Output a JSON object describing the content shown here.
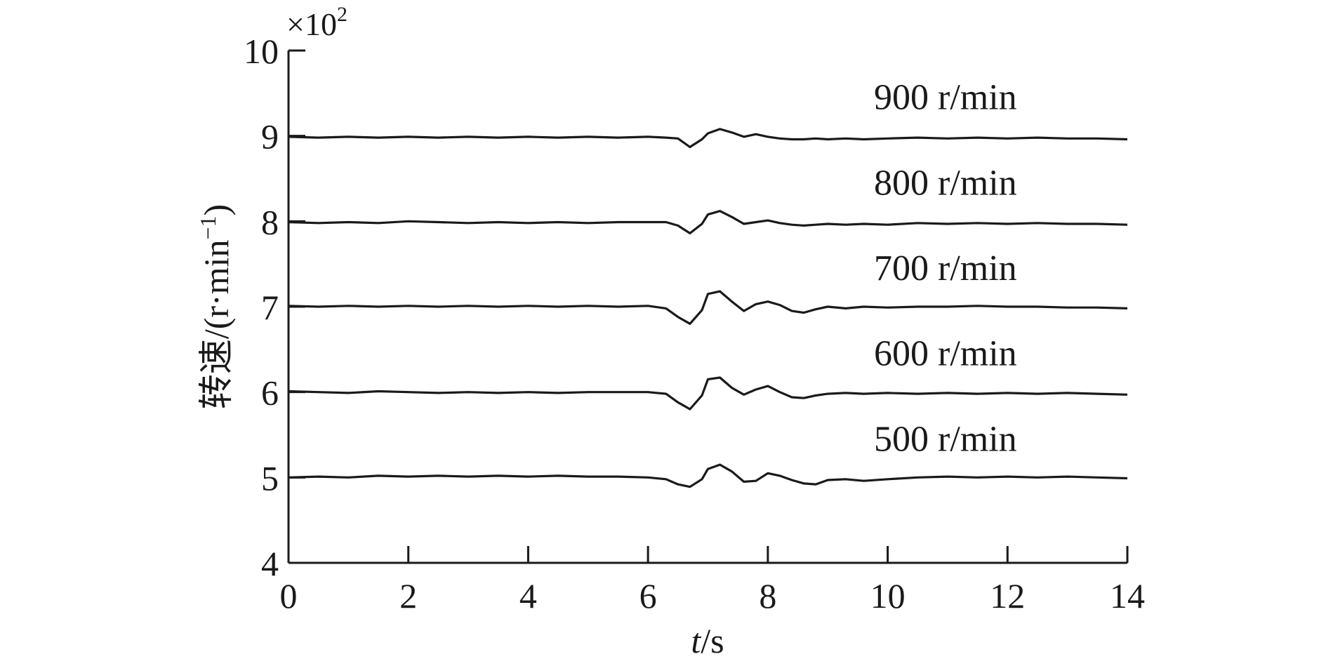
{
  "chart_data": {
    "type": "line",
    "x_label_italic": "t",
    "x_label_unit": "/s",
    "y_label": "转速/(r·min",
    "y_label_sup": "−1",
    "y_label_close": ")",
    "y_multiplier_base": "×10",
    "y_multiplier_exp": "2",
    "xlim": [
      0,
      14
    ],
    "ylim": [
      4,
      10
    ],
    "x_ticks": [
      "0",
      "2",
      "4",
      "6",
      "8",
      "10",
      "12",
      "14"
    ],
    "y_ticks": [
      "4",
      "5",
      "6",
      "7",
      "8",
      "9",
      "10"
    ],
    "grid": false,
    "x": [
      0,
      0.5,
      1,
      1.5,
      2,
      2.5,
      3,
      3.5,
      4,
      4.5,
      5,
      5.5,
      6,
      6.3,
      6.5,
      6.7,
      6.9,
      7.0,
      7.2,
      7.4,
      7.6,
      7.8,
      8.0,
      8.2,
      8.4,
      8.6,
      8.8,
      9.0,
      9.3,
      9.6,
      10,
      10.5,
      11,
      11.5,
      12,
      12.5,
      13,
      13.5,
      14
    ],
    "series": [
      {
        "name": "900 r/min",
        "values": [
          8.99,
          8.98,
          8.99,
          8.98,
          8.99,
          8.98,
          8.99,
          8.98,
          8.99,
          8.98,
          8.99,
          8.98,
          8.99,
          8.98,
          8.97,
          8.87,
          8.96,
          9.03,
          9.08,
          9.04,
          8.99,
          9.02,
          8.99,
          8.97,
          8.96,
          8.96,
          8.97,
          8.96,
          8.97,
          8.96,
          8.97,
          8.98,
          8.97,
          8.98,
          8.97,
          8.98,
          8.97,
          8.97,
          8.96
        ]
      },
      {
        "name": "800 r/min",
        "values": [
          7.99,
          7.98,
          7.99,
          7.98,
          8.0,
          7.99,
          7.98,
          7.99,
          7.98,
          7.99,
          7.98,
          7.99,
          7.99,
          7.99,
          7.95,
          7.86,
          7.97,
          8.08,
          8.12,
          8.05,
          7.97,
          7.99,
          8.01,
          7.98,
          7.96,
          7.95,
          7.96,
          7.97,
          7.96,
          7.97,
          7.96,
          7.98,
          7.97,
          7.98,
          7.97,
          7.98,
          7.97,
          7.97,
          7.96
        ]
      },
      {
        "name": "700 r/min",
        "values": [
          7.01,
          7.0,
          7.01,
          7.0,
          7.01,
          7.0,
          7.01,
          7.0,
          7.01,
          7.0,
          7.01,
          7.0,
          7.01,
          6.98,
          6.88,
          6.8,
          6.96,
          7.15,
          7.18,
          7.06,
          6.95,
          7.03,
          7.06,
          7.02,
          6.95,
          6.93,
          6.97,
          7.0,
          6.98,
          7.0,
          6.99,
          7.0,
          7.0,
          7.01,
          7.0,
          7.0,
          6.99,
          6.99,
          6.98
        ]
      },
      {
        "name": "600 r/min",
        "values": [
          6.01,
          6.0,
          5.99,
          6.01,
          6.0,
          5.99,
          6.0,
          5.99,
          6.0,
          5.99,
          6.0,
          6.0,
          6.0,
          5.98,
          5.88,
          5.8,
          5.96,
          6.15,
          6.17,
          6.05,
          5.97,
          6.03,
          6.07,
          6.0,
          5.94,
          5.93,
          5.96,
          5.98,
          5.99,
          5.98,
          5.99,
          5.98,
          5.99,
          5.98,
          5.99,
          5.98,
          5.99,
          5.98,
          5.97
        ]
      },
      {
        "name": "500 r/min",
        "values": [
          5.0,
          5.01,
          5.0,
          5.02,
          5.01,
          5.02,
          5.01,
          5.02,
          5.01,
          5.02,
          5.01,
          5.01,
          5.0,
          4.98,
          4.92,
          4.89,
          4.98,
          5.1,
          5.15,
          5.07,
          4.95,
          4.96,
          5.05,
          5.02,
          4.97,
          4.93,
          4.92,
          4.97,
          4.98,
          4.96,
          4.98,
          5.0,
          5.01,
          5.0,
          5.01,
          5.0,
          5.01,
          5.0,
          4.99
        ]
      }
    ]
  }
}
